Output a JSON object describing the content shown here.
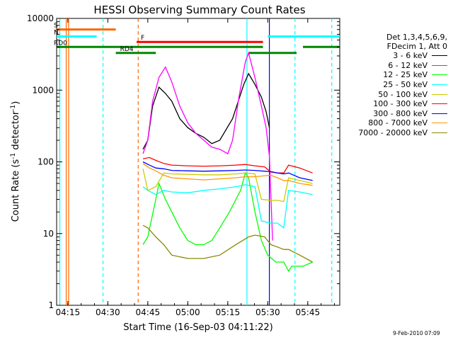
{
  "chart_data": {
    "type": "line",
    "title": "HESSI Observing Summary Count Rates",
    "xlabel": "Start Time (16-Sep-03 04:11:22)",
    "ylabel_prefix": "Count Rate (s",
    "ylabel_sup1": "-1",
    "ylabel_mid": " detector",
    "ylabel_sup2": "-1",
    "ylabel_suffix": ")",
    "x_range_min": [
      4.18,
      5.95
    ],
    "y_log_range": [
      1,
      10000
    ],
    "x_ticks": [
      {
        "t": 4.25,
        "label": "04:15"
      },
      {
        "t": 4.5,
        "label": "04:30"
      },
      {
        "t": 4.75,
        "label": "04:45"
      },
      {
        "t": 5.0,
        "label": "05:00"
      },
      {
        "t": 5.25,
        "label": "05:15"
      },
      {
        "t": 5.5,
        "label": "05:30"
      },
      {
        "t": 5.75,
        "label": "05:45"
      }
    ],
    "y_ticks": [
      {
        "v": 1,
        "label": "1"
      },
      {
        "v": 10,
        "label": "10"
      },
      {
        "v": 100,
        "label": "100"
      },
      {
        "v": 1000,
        "label": "1000"
      },
      {
        "v": 10000,
        "label": "10000"
      }
    ],
    "legend_header": [
      "Det 1,3,4,5,6,9,",
      "FDecim 1, Att 0"
    ],
    "legend_position": "right",
    "series": [
      {
        "name": "3 - 6 keV",
        "color": "#000000",
        "points": [
          [
            4.72,
            150
          ],
          [
            4.75,
            200
          ],
          [
            4.78,
            600
          ],
          [
            4.82,
            1100
          ],
          [
            4.86,
            900
          ],
          [
            4.9,
            700
          ],
          [
            4.95,
            400
          ],
          [
            5.0,
            300
          ],
          [
            5.05,
            250
          ],
          [
            5.1,
            220
          ],
          [
            5.15,
            180
          ],
          [
            5.2,
            200
          ],
          [
            5.28,
            400
          ],
          [
            5.35,
            1200
          ],
          [
            5.38,
            1700
          ],
          [
            5.42,
            1200
          ],
          [
            5.46,
            800
          ],
          [
            5.49,
            500
          ],
          [
            5.51,
            300
          ]
        ]
      },
      {
        "name": "6 - 12 keV",
        "color": "#ff00ff",
        "points": [
          [
            4.72,
            130
          ],
          [
            4.75,
            200
          ],
          [
            4.78,
            700
          ],
          [
            4.82,
            1500
          ],
          [
            4.86,
            2100
          ],
          [
            4.9,
            1300
          ],
          [
            4.95,
            600
          ],
          [
            5.0,
            350
          ],
          [
            5.05,
            250
          ],
          [
            5.1,
            200
          ],
          [
            5.15,
            160
          ],
          [
            5.2,
            150
          ],
          [
            5.25,
            130
          ],
          [
            5.28,
            200
          ],
          [
            5.32,
            800
          ],
          [
            5.36,
            2500
          ],
          [
            5.38,
            3300
          ],
          [
            5.42,
            1500
          ],
          [
            5.46,
            600
          ],
          [
            5.49,
            300
          ],
          [
            5.51,
            120
          ],
          [
            5.53,
            8
          ]
        ]
      },
      {
        "name": "12 - 25 keV",
        "color": "#00ff00",
        "points": [
          [
            4.72,
            7
          ],
          [
            4.75,
            9
          ],
          [
            4.8,
            30
          ],
          [
            4.82,
            50
          ],
          [
            4.86,
            30
          ],
          [
            4.9,
            20
          ],
          [
            4.95,
            12
          ],
          [
            5.0,
            8
          ],
          [
            5.05,
            7
          ],
          [
            5.1,
            7
          ],
          [
            5.15,
            8
          ],
          [
            5.2,
            12
          ],
          [
            5.26,
            20
          ],
          [
            5.33,
            40
          ],
          [
            5.36,
            70
          ],
          [
            5.38,
            60
          ],
          [
            5.42,
            20
          ],
          [
            5.46,
            8
          ],
          [
            5.5,
            5
          ],
          [
            5.55,
            4
          ],
          [
            5.6,
            4
          ],
          [
            5.63,
            3
          ],
          [
            5.65,
            3.5
          ],
          [
            5.72,
            3.5
          ],
          [
            5.78,
            4
          ]
        ]
      },
      {
        "name": "25 - 50 keV",
        "color": "#00ffff",
        "points": [
          [
            4.72,
            45
          ],
          [
            4.75,
            40
          ],
          [
            4.8,
            35
          ],
          [
            4.85,
            40
          ],
          [
            4.9,
            38
          ],
          [
            5.0,
            37
          ],
          [
            5.1,
            40
          ],
          [
            5.2,
            42
          ],
          [
            5.3,
            45
          ],
          [
            5.36,
            48
          ],
          [
            5.42,
            45
          ],
          [
            5.46,
            15
          ],
          [
            5.52,
            14
          ],
          [
            5.56,
            14
          ],
          [
            5.6,
            12
          ],
          [
            5.63,
            40
          ],
          [
            5.7,
            38
          ],
          [
            5.78,
            35
          ]
        ]
      },
      {
        "name": "50 - 100 keV",
        "color": "#cccc00",
        "points": [
          [
            4.72,
            80
          ],
          [
            4.75,
            40
          ],
          [
            4.8,
            45
          ],
          [
            4.85,
            70
          ],
          [
            4.9,
            68
          ],
          [
            5.0,
            67
          ],
          [
            5.1,
            66
          ],
          [
            5.2,
            66
          ],
          [
            5.3,
            68
          ],
          [
            5.36,
            70
          ],
          [
            5.42,
            68
          ],
          [
            5.46,
            30
          ],
          [
            5.52,
            29
          ],
          [
            5.56,
            29
          ],
          [
            5.6,
            28
          ],
          [
            5.63,
            60
          ],
          [
            5.7,
            55
          ],
          [
            5.78,
            50
          ]
        ]
      },
      {
        "name": "100 - 300 keV",
        "color": "#ff0000",
        "points": [
          [
            4.72,
            110
          ],
          [
            4.76,
            115
          ],
          [
            4.8,
            105
          ],
          [
            4.85,
            95
          ],
          [
            4.9,
            90
          ],
          [
            5.0,
            88
          ],
          [
            5.1,
            87
          ],
          [
            5.2,
            88
          ],
          [
            5.3,
            90
          ],
          [
            5.36,
            92
          ],
          [
            5.42,
            88
          ],
          [
            5.48,
            85
          ],
          [
            5.52,
            72
          ],
          [
            5.56,
            70
          ],
          [
            5.6,
            70
          ],
          [
            5.63,
            90
          ],
          [
            5.7,
            82
          ],
          [
            5.78,
            70
          ]
        ]
      },
      {
        "name": "300 - 800 keV",
        "color": "#0000ff",
        "points": [
          [
            4.72,
            100
          ],
          [
            4.76,
            90
          ],
          [
            4.8,
            82
          ],
          [
            4.85,
            80
          ],
          [
            4.9,
            76
          ],
          [
            5.0,
            75
          ],
          [
            5.1,
            74
          ],
          [
            5.2,
            75
          ],
          [
            5.3,
            76
          ],
          [
            5.36,
            77
          ],
          [
            5.42,
            76
          ],
          [
            5.48,
            74
          ],
          [
            5.52,
            73
          ],
          [
            5.56,
            70
          ],
          [
            5.6,
            68
          ],
          [
            5.63,
            70
          ],
          [
            5.7,
            60
          ],
          [
            5.78,
            55
          ]
        ]
      },
      {
        "name": "800 - 7000 keV",
        "color": "#ff9900",
        "points": [
          [
            4.72,
            95
          ],
          [
            4.76,
            82
          ],
          [
            4.8,
            75
          ],
          [
            4.85,
            65
          ],
          [
            4.9,
            60
          ],
          [
            5.0,
            58
          ],
          [
            5.1,
            56
          ],
          [
            5.2,
            58
          ],
          [
            5.3,
            60
          ],
          [
            5.36,
            62
          ],
          [
            5.42,
            62
          ],
          [
            5.48,
            64
          ],
          [
            5.52,
            65
          ],
          [
            5.56,
            60
          ],
          [
            5.6,
            55
          ],
          [
            5.63,
            55
          ],
          [
            5.7,
            50
          ],
          [
            5.78,
            47
          ]
        ]
      },
      {
        "name": "7000 - 20000 keV",
        "color": "#888800",
        "points": [
          [
            4.72,
            13
          ],
          [
            4.75,
            12
          ],
          [
            4.8,
            9
          ],
          [
            4.85,
            7
          ],
          [
            4.9,
            5
          ],
          [
            5.0,
            4.5
          ],
          [
            5.1,
            4.5
          ],
          [
            5.2,
            5
          ],
          [
            5.3,
            7
          ],
          [
            5.38,
            9
          ],
          [
            5.42,
            9.5
          ],
          [
            5.48,
            9
          ],
          [
            5.52,
            7
          ],
          [
            5.56,
            6.5
          ],
          [
            5.6,
            6
          ],
          [
            5.63,
            6
          ],
          [
            5.7,
            5
          ],
          [
            5.78,
            4
          ]
        ]
      }
    ],
    "flag_bars": [
      {
        "label": "S",
        "color": "#ff6600",
        "t0": 4.18,
        "t1": 4.55,
        "level": 7000
      },
      {
        "label": "N",
        "color": "#00ffff",
        "t0": 4.18,
        "t1": 4.43,
        "level": 5600
      },
      {
        "label": "",
        "color": "#00ffff",
        "t0": 5.5,
        "t1": 5.95,
        "level": 5600
      },
      {
        "label": "F",
        "color": "#ff0000",
        "t0": 4.68,
        "t1": 5.47,
        "level": 4700
      },
      {
        "label": "RD0",
        "color": "#008800",
        "t0": 4.18,
        "t1": 5.47,
        "level": 4000
      },
      {
        "label": "RD4",
        "color": "#008800",
        "t0": 4.55,
        "t1": 4.8,
        "level": 3300
      },
      {
        "label": "",
        "color": "#008800",
        "t0": 5.38,
        "t1": 5.68,
        "level": 3300
      },
      {
        "label": "",
        "color": "#008800",
        "t0": 5.72,
        "t1": 5.95,
        "level": 4000
      }
    ],
    "vertical_markers": [
      {
        "t": 4.2,
        "color": "#00ffff",
        "style": "solid"
      },
      {
        "t": 4.24,
        "color": "#ff6600",
        "style": "solid"
      },
      {
        "t": 4.255,
        "color": "#ff6600",
        "style": "solid"
      },
      {
        "t": 4.47,
        "color": "#00ffff",
        "style": "dashed"
      },
      {
        "t": 4.69,
        "color": "#ff6600",
        "style": "dashed"
      },
      {
        "t": 5.37,
        "color": "#00ffff",
        "style": "solid"
      },
      {
        "t": 5.51,
        "color": "#0000ff",
        "style": "solid"
      },
      {
        "t": 5.67,
        "color": "#00ffff",
        "style": "dashed"
      },
      {
        "t": 5.9,
        "color": "#00ffff",
        "style": "dashed"
      }
    ],
    "grid": false
  },
  "footer": {
    "timestamp": "9-Feb-2010 07:09"
  }
}
